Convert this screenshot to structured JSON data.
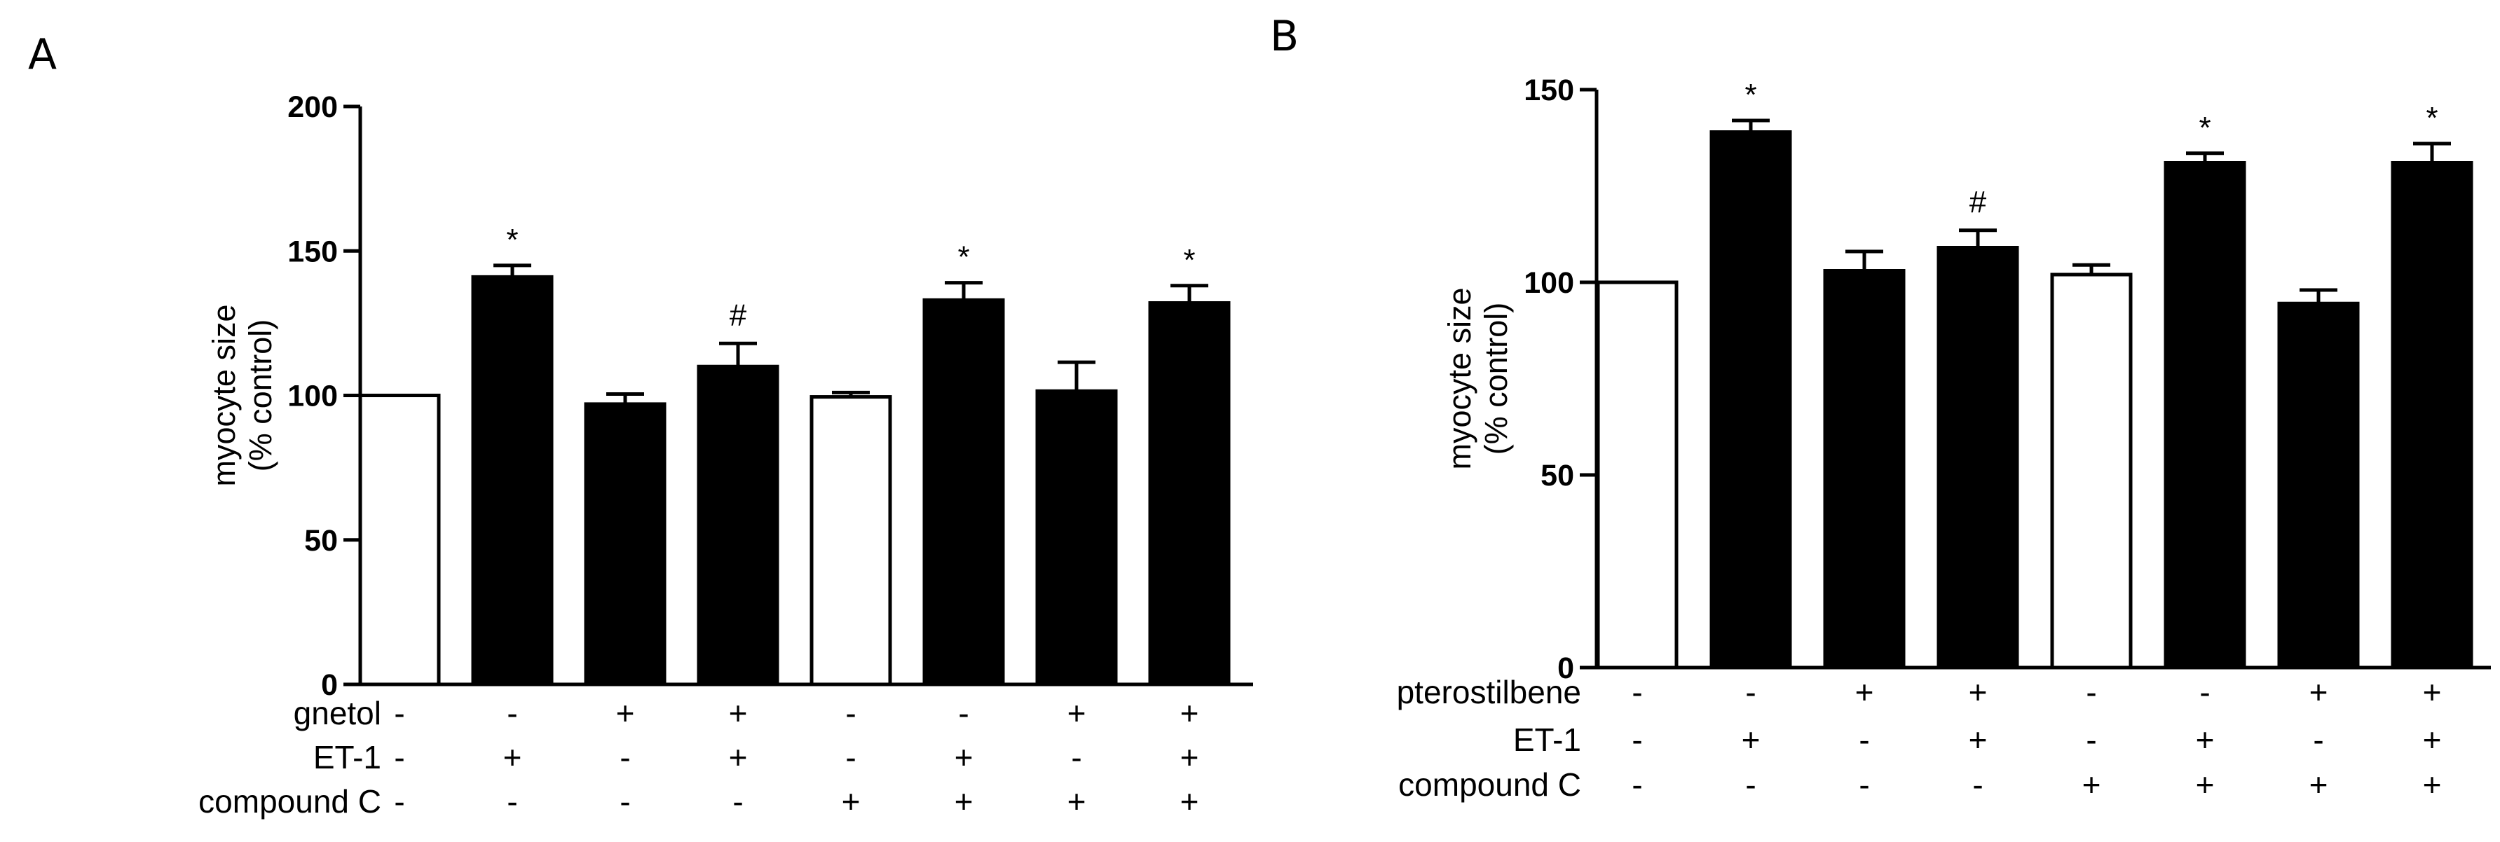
{
  "panels": [
    {
      "letter": "A"
    },
    {
      "letter": "B"
    }
  ],
  "chart_data": [
    {
      "type": "bar",
      "panel": "A",
      "title": "",
      "ylabel_lines": [
        "myocyte size",
        "(% control)"
      ],
      "ylim": [
        0,
        200
      ],
      "yticks": [
        0,
        50,
        100,
        150,
        200
      ],
      "values": [
        100,
        141,
        97,
        110,
        99.5,
        133,
        101.5,
        132
      ],
      "errors": [
        0,
        4,
        3.5,
        8,
        1.5,
        6,
        10,
        6
      ],
      "fills": [
        "white",
        "black",
        "black",
        "black",
        "white",
        "black",
        "black",
        "black"
      ],
      "annotations": [
        "",
        "*",
        "",
        "#",
        "",
        "*",
        "",
        "*"
      ],
      "conditions": [
        {
          "label": "gnetol",
          "signs": [
            "-",
            "-",
            "+",
            "+",
            "-",
            "-",
            "+",
            "+"
          ]
        },
        {
          "label": "ET-1",
          "signs": [
            "-",
            "+",
            "-",
            "+",
            "-",
            "+",
            "-",
            "+"
          ]
        },
        {
          "label": "compound C",
          "signs": [
            "-",
            "-",
            "-",
            "-",
            "+",
            "+",
            "+",
            "+"
          ]
        }
      ]
    },
    {
      "type": "bar",
      "panel": "B",
      "title": "",
      "ylabel_lines": [
        "myocyte size",
        "(% control)"
      ],
      "ylim": [
        0,
        150
      ],
      "yticks": [
        0,
        50,
        100,
        150
      ],
      "values": [
        100,
        139,
        103,
        109,
        102,
        131,
        94.5,
        131
      ],
      "errors": [
        0,
        3,
        5,
        4.5,
        2.5,
        2.5,
        3.5,
        5
      ],
      "fills": [
        "white",
        "black",
        "black",
        "black",
        "white",
        "black",
        "black",
        "black"
      ],
      "annotations": [
        "",
        "*",
        "",
        "#",
        "",
        "*",
        "",
        "*"
      ],
      "conditions": [
        {
          "label": "pterostilbene",
          "signs": [
            "-",
            "-",
            "+",
            "+",
            "-",
            "-",
            "+",
            "+"
          ]
        },
        {
          "label": "ET-1",
          "signs": [
            "-",
            "+",
            "-",
            "+",
            "-",
            "+",
            "-",
            "+"
          ]
        },
        {
          "label": "compound C",
          "signs": [
            "-",
            "-",
            "-",
            "-",
            "+",
            "+",
            "+",
            "+"
          ]
        }
      ]
    }
  ]
}
